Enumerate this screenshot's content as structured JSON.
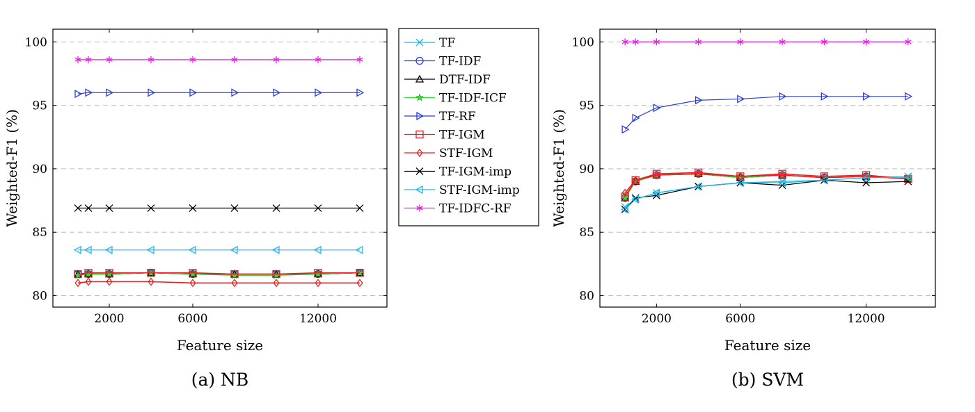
{
  "legend": {
    "entries": [
      {
        "name": "TF",
        "color": "#1fb7e6",
        "marker": "x"
      },
      {
        "name": "TF-IDF",
        "color": "#2b3fd6",
        "marker": "circle"
      },
      {
        "name": "DTF-IDF",
        "color": "#000000",
        "marker": "triangle"
      },
      {
        "name": "TF-IDF-ICF",
        "color": "#2ee52e",
        "marker": "star"
      },
      {
        "name": "TF-RF",
        "color": "#2b3fd6",
        "marker": "triangle-right"
      },
      {
        "name": "TF-IGM",
        "color": "#e62222",
        "marker": "square"
      },
      {
        "name": "STF-IGM",
        "color": "#e62222",
        "marker": "diamond"
      },
      {
        "name": "TF-IGM-imp",
        "color": "#000000",
        "marker": "x"
      },
      {
        "name": "STF-IGM-imp",
        "color": "#1fb7e6",
        "marker": "triangle-left"
      },
      {
        "name": "TF-IDFC-RF",
        "color": "#e61ee6",
        "marker": "asterisk"
      }
    ]
  },
  "chart_data": [
    {
      "type": "line",
      "caption": "(a) NB",
      "xlabel": "Feature size",
      "ylabel": "Weighted-F1 (%)",
      "xlim": [
        -700,
        15300
      ],
      "ylim": [
        79.1,
        101
      ],
      "xticks": [
        2000,
        6000,
        12000
      ],
      "yticks": [
        80,
        85,
        90,
        95,
        100
      ],
      "grid": "horizontal-dashed",
      "x": [
        500,
        1000,
        2000,
        4000,
        6000,
        8000,
        10000,
        12000,
        14000
      ],
      "series": [
        {
          "name": "TF",
          "values": [
            81.7,
            81.7,
            81.7,
            81.8,
            81.7,
            81.7,
            81.7,
            81.7,
            81.8
          ]
        },
        {
          "name": "TF-IDF",
          "values": [
            81.7,
            81.7,
            81.7,
            81.8,
            81.7,
            81.7,
            81.7,
            81.7,
            81.8
          ]
        },
        {
          "name": "DTF-IDF",
          "values": [
            81.7,
            81.7,
            81.7,
            81.8,
            81.7,
            81.7,
            81.7,
            81.7,
            81.8
          ]
        },
        {
          "name": "TF-IDF-ICF",
          "values": [
            81.6,
            81.7,
            81.7,
            81.8,
            81.7,
            81.6,
            81.6,
            81.7,
            81.8
          ]
        },
        {
          "name": "TF-RF",
          "values": [
            95.9,
            96.0,
            96.0,
            96.0,
            96.0,
            96.0,
            96.0,
            96.0,
            96.0
          ]
        },
        {
          "name": "TF-IGM",
          "values": [
            81.7,
            81.8,
            81.8,
            81.8,
            81.8,
            81.7,
            81.7,
            81.8,
            81.8
          ]
        },
        {
          "name": "STF-IGM",
          "values": [
            81.0,
            81.1,
            81.1,
            81.1,
            81.0,
            81.0,
            81.0,
            81.0,
            81.0
          ]
        },
        {
          "name": "TF-IGM-imp",
          "values": [
            86.9,
            86.9,
            86.9,
            86.9,
            86.9,
            86.9,
            86.9,
            86.9,
            86.9
          ]
        },
        {
          "name": "STF-IGM-imp",
          "values": [
            83.6,
            83.6,
            83.6,
            83.6,
            83.6,
            83.6,
            83.6,
            83.6,
            83.6
          ]
        },
        {
          "name": "TF-IDFC-RF",
          "values": [
            98.6,
            98.6,
            98.6,
            98.6,
            98.6,
            98.6,
            98.6,
            98.6,
            98.6
          ]
        }
      ]
    },
    {
      "type": "line",
      "caption": "(b) SVM",
      "xlabel": "Feature size",
      "ylabel": "Weighted-F1 (%)",
      "xlim": [
        -700,
        15300
      ],
      "ylim": [
        79.1,
        101
      ],
      "xticks": [
        2000,
        6000,
        12000
      ],
      "yticks": [
        80,
        85,
        90,
        95,
        100
      ],
      "grid": "horizontal-dashed",
      "x": [
        500,
        1000,
        2000,
        4000,
        6000,
        8000,
        10000,
        12000,
        14000
      ],
      "series": [
        {
          "name": "TF",
          "values": [
            87.0,
            87.6,
            88.1,
            88.6,
            88.9,
            89.0,
            89.1,
            89.3,
            89.4
          ]
        },
        {
          "name": "TF-IDF",
          "values": [
            87.7,
            89.0,
            89.5,
            89.6,
            89.3,
            89.5,
            89.3,
            89.4,
            89.2
          ]
        },
        {
          "name": "DTF-IDF",
          "values": [
            87.7,
            89.0,
            89.5,
            89.6,
            89.3,
            89.5,
            89.3,
            89.4,
            89.2
          ]
        },
        {
          "name": "TF-IDF-ICF",
          "values": [
            87.7,
            89.0,
            89.5,
            89.6,
            89.3,
            89.5,
            89.3,
            89.4,
            89.2
          ]
        },
        {
          "name": "TF-RF",
          "values": [
            93.1,
            94.0,
            94.8,
            95.4,
            95.5,
            95.7,
            95.7,
            95.7,
            95.7
          ]
        },
        {
          "name": "TF-IGM",
          "values": [
            87.8,
            89.1,
            89.6,
            89.7,
            89.4,
            89.6,
            89.4,
            89.5,
            89.2
          ]
        },
        {
          "name": "STF-IGM",
          "values": [
            88.1,
            89.1,
            89.5,
            89.6,
            89.4,
            89.5,
            89.3,
            89.4,
            89.2
          ]
        },
        {
          "name": "TF-IGM-imp",
          "values": [
            86.8,
            87.7,
            87.9,
            88.6,
            88.9,
            88.7,
            89.1,
            88.9,
            89.0
          ]
        },
        {
          "name": "STF-IGM-imp",
          "values": [
            86.8,
            87.6,
            88.1,
            88.6,
            88.9,
            88.9,
            89.1,
            89.3,
            89.3
          ]
        },
        {
          "name": "TF-IDFC-RF",
          "values": [
            100.0,
            100.0,
            100.0,
            100.0,
            100.0,
            100.0,
            100.0,
            100.0,
            100.0
          ]
        }
      ]
    }
  ]
}
